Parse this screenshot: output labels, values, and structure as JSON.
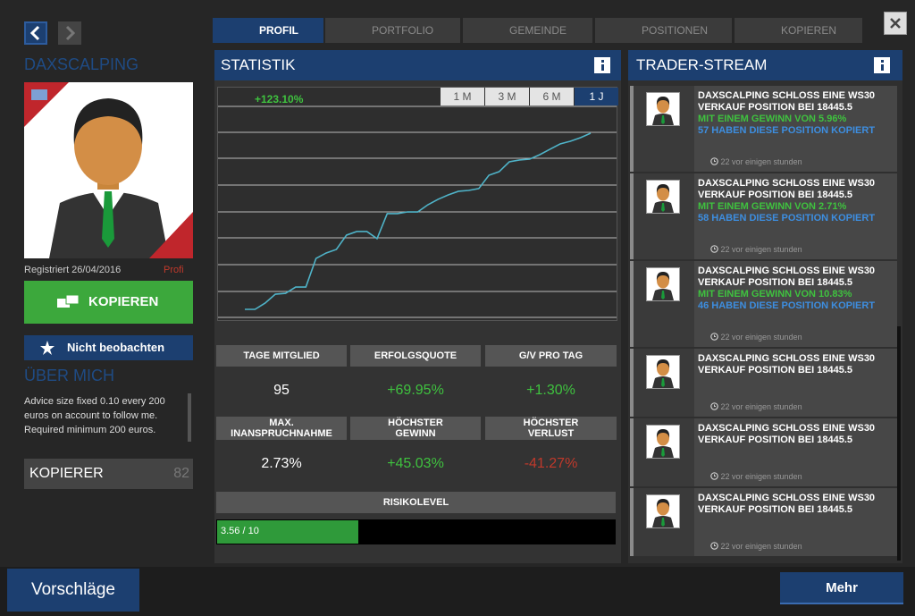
{
  "profile": {
    "name": "DAXSCALPING",
    "registered": "Registriert 26/04/2016",
    "badge": "Profi",
    "copy_button": "KOPIEREN",
    "watch_button": "Nicht beobachten",
    "about_title": "ÜBER MICH",
    "about_text": "Advice size fixed 0.10 every 200 euros on account to follow me. Required minimum 200 euros.",
    "copiers_label": "KOPIERER",
    "copiers_count": 82
  },
  "tabs": [
    "PROFIL",
    "PORTFOLIO",
    "GEMEINDE",
    "POSITIONEN",
    "KOPIEREN"
  ],
  "statistics": {
    "title": "STATISTIK",
    "chart": {
      "type": "line",
      "label": "+123.10%",
      "color": "#4fb3c8",
      "ranges": [
        "1 M",
        "3 M",
        "6 M",
        "1 J"
      ],
      "values": [
        0,
        0,
        4.4,
        10.6,
        11.2,
        15.6,
        15.6,
        35.6,
        39.4,
        41.9,
        51.9,
        54.4,
        54.4,
        49.4,
        66.9,
        66.9,
        68.1,
        68.1,
        73.1,
        76.9,
        80.0,
        82.5,
        83.1,
        84.4,
        93.7,
        96.2,
        103.1,
        104.4,
        105.0,
        108.1,
        111.9,
        115.6,
        117.5,
        120.0,
        123.1
      ]
    },
    "stats": [
      {
        "label": "TAGE MITGLIED",
        "value": "95",
        "color": "#ffffff"
      },
      {
        "label": "ERFOLGSQUOTE",
        "value": "+69.95%",
        "color": "#3fc23f"
      },
      {
        "label": "G/V PRO TAG",
        "value": "+1.30%",
        "color": "#3fc23f"
      },
      {
        "label": "MAX. INANSPRUCHNAHME",
        "value": "2.73%",
        "color": "#ffffff"
      },
      {
        "label": "HÖCHSTER GEWINN",
        "value": "+45.03%",
        "color": "#3fc23f"
      },
      {
        "label": "HÖCHSTER VERLUST",
        "value": "-41.27%",
        "color": "#c0392b"
      }
    ],
    "risk_label": "RISIKOLEVEL",
    "risk": {
      "value": 3.56,
      "max": 10,
      "label": "3.56 / 10"
    }
  },
  "stream": {
    "title": "TRADER-STREAM",
    "items": [
      {
        "line1": "DAXSCALPING SCHLOSS EINE",
        "symbol": "WS30",
        "line2": "VERKAUF POSITION BEI",
        "price": "18445.5",
        "gain": "MIT EINEM GEWINN VON 5.96%",
        "copied": "57 HABEN DIESE POSITION KOPIERT",
        "time": "22 vor einigen stunden"
      },
      {
        "line1": "DAXSCALPING SCHLOSS EINE",
        "symbol": "WS30",
        "line2": "VERKAUF POSITION BEI",
        "price": "18445.5",
        "gain": "MIT EINEM GEWINN VON 2.71%",
        "copied": "58 HABEN DIESE POSITION KOPIERT",
        "time": "22 vor einigen stunden"
      },
      {
        "line1": "DAXSCALPING SCHLOSS EINE",
        "symbol": "WS30",
        "line2": "VERKAUF POSITION BEI",
        "price": "18445.5",
        "gain": "MIT EINEM GEWINN VON 10.83%",
        "copied": "46 HABEN DIESE POSITION KOPIERT",
        "time": "22 vor einigen stunden"
      },
      {
        "line1": "DAXSCALPING SCHLOSS EINE",
        "symbol": "WS30",
        "line2": "VERKAUF POSITION BEI",
        "price": "18445.5",
        "time": "22 vor einigen stunden"
      },
      {
        "line1": "DAXSCALPING SCHLOSS EINE",
        "symbol": "WS30",
        "line2": "VERKAUF POSITION BEI",
        "price": "18445.5",
        "time": "22 vor einigen stunden"
      },
      {
        "line1": "DAXSCALPING SCHLOSS EINE",
        "symbol": "WS30",
        "line2": "VERKAUF POSITION BEI",
        "price": "18445.5",
        "time": "22 vor einigen stunden"
      }
    ]
  },
  "footer": {
    "suggestions": "Vorschläge",
    "more": "Mehr"
  }
}
